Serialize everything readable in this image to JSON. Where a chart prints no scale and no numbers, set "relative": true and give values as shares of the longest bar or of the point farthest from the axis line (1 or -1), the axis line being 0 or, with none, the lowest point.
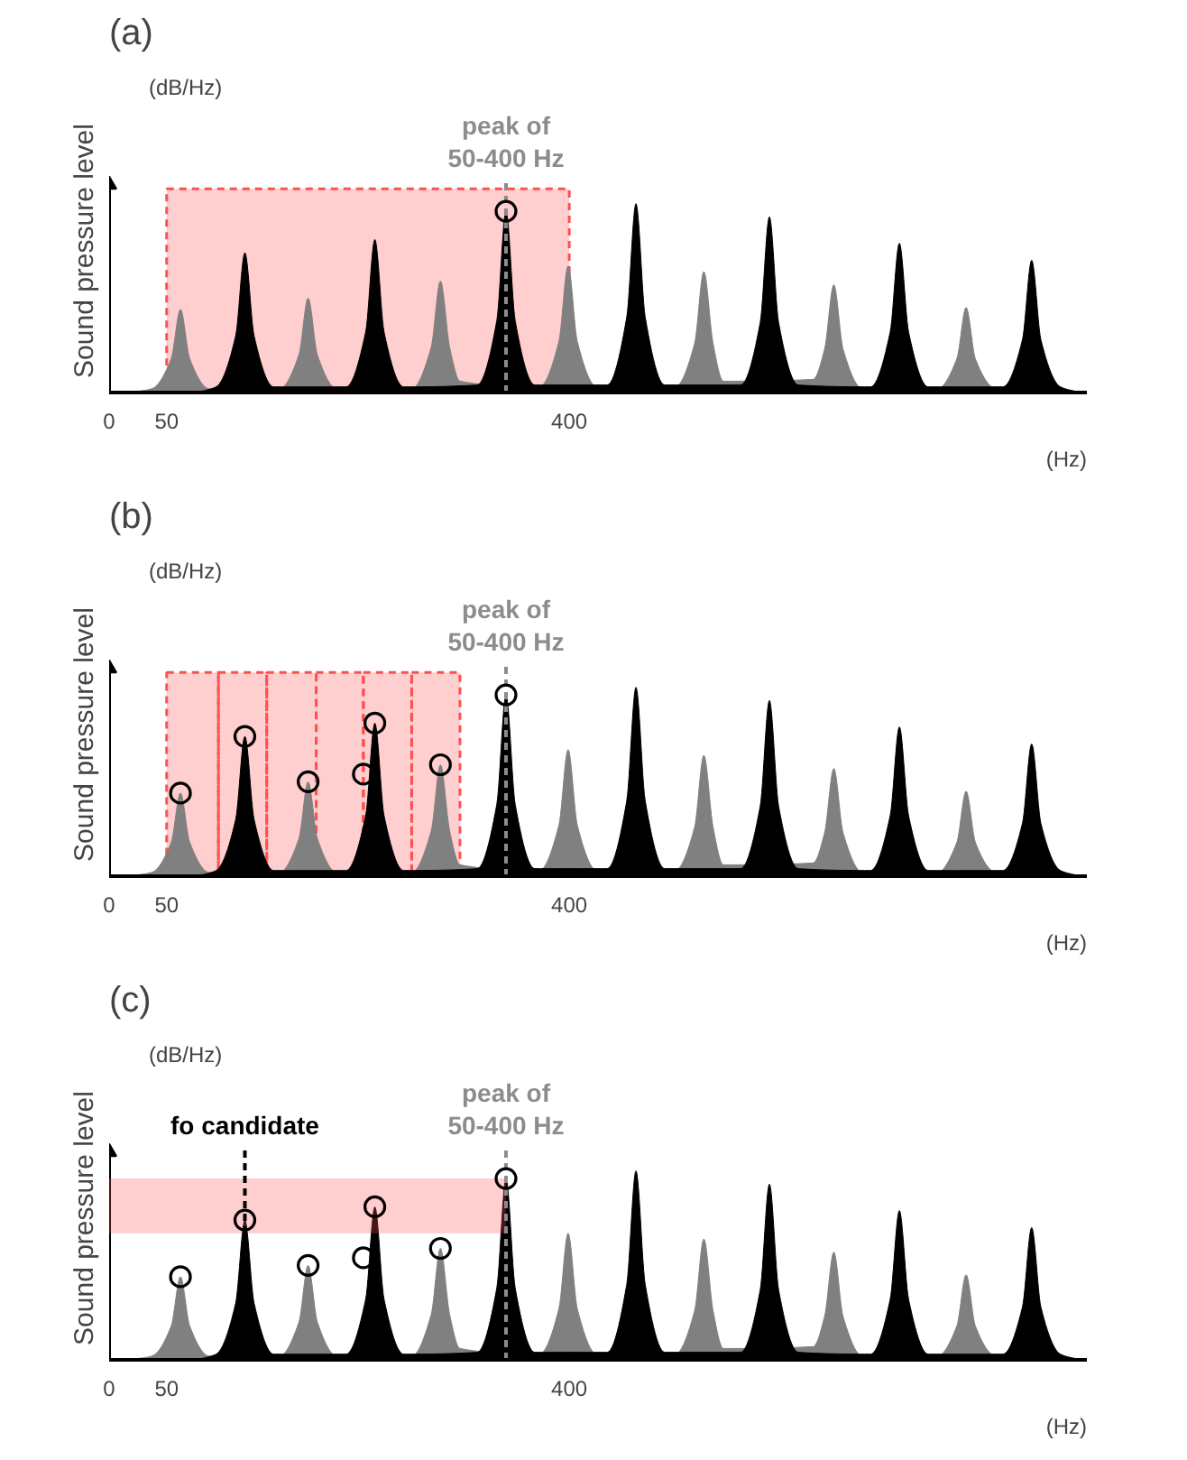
{
  "chart_data": [
    {
      "type": "area",
      "title": "(a)",
      "xlabel": "(Hz)",
      "ylabel": "Sound pressure level",
      "annotations": [
        "(dB/Hz)"
      ],
      "relative": true,
      "xlim": [
        0,
        850
      ],
      "xticks": [
        0,
        50,
        400
      ],
      "grid": false,
      "series": [
        {
          "color": "#808080",
          "x": [
            15,
            37,
            54,
            62,
            70,
            87,
            148,
            165,
            173,
            181,
            198,
            263,
            280,
            288,
            296,
            305,
            374,
            391,
            399,
            407,
            424,
            492,
            509,
            517,
            525,
            534,
            612,
            622,
            630,
            638,
            655,
            720,
            737,
            745,
            753,
            770,
            790
          ],
          "values": [
            0,
            0.02,
            0.18,
            0.44,
            0.18,
            0.02,
            0.02,
            0.2,
            0.5,
            0.2,
            0.02,
            0.02,
            0.24,
            0.59,
            0.24,
            0.06,
            0.03,
            0.27,
            0.67,
            0.27,
            0.03,
            0.03,
            0.26,
            0.64,
            0.26,
            0.06,
            0.07,
            0.23,
            0.57,
            0.23,
            0.02,
            0.02,
            0.18,
            0.45,
            0.18,
            0.02,
            0
          ]
        },
        {
          "color": "#000000",
          "x": [
            75,
            93,
            110,
            118,
            126,
            143,
            206,
            223,
            231,
            239,
            256,
            320,
            337,
            345,
            353,
            370,
            433,
            450,
            458,
            466,
            483,
            549,
            566,
            574,
            582,
            599,
            662,
            679,
            687,
            695,
            712,
            777,
            794,
            802,
            810,
            827,
            845
          ],
          "values": [
            0,
            0.03,
            0.3,
            0.74,
            0.3,
            0.03,
            0.03,
            0.32,
            0.81,
            0.32,
            0.03,
            0.04,
            0.38,
            0.96,
            0.38,
            0.04,
            0.04,
            0.4,
            1,
            0.4,
            0.04,
            0.04,
            0.37,
            0.93,
            0.37,
            0.04,
            0.03,
            0.32,
            0.79,
            0.32,
            0.03,
            0.03,
            0.28,
            0.7,
            0.28,
            0.03,
            0
          ]
        },
        {
          "type": "scatter",
          "marker": "circle",
          "color": "#000000",
          "x": [
            345
          ],
          "values": [
            0.96
          ]
        }
      ],
      "bands": [
        {
          "axis": "x",
          "from": 50,
          "to": 400,
          "color": "#ff5050"
        }
      ],
      "ref_lines": [
        {
          "axis": "x",
          "value": 345,
          "label": "peak of 50-400 Hz",
          "color": "#8c8c8c",
          "line_style": "dashed"
        }
      ]
    },
    {
      "type": "area",
      "title": "(b)",
      "xlabel": "(Hz)",
      "ylabel": "Sound pressure level",
      "annotations": [
        "(dB/Hz)"
      ],
      "relative": true,
      "xlim": [
        0,
        850
      ],
      "xticks": [
        0,
        50,
        400
      ],
      "grid": false,
      "series": [
        {
          "color": "#808080",
          "x": [
            15,
            37,
            54,
            62,
            70,
            87,
            148,
            165,
            173,
            181,
            198,
            263,
            280,
            288,
            296,
            305,
            374,
            391,
            399,
            407,
            424,
            492,
            509,
            517,
            525,
            534,
            612,
            622,
            630,
            638,
            655,
            720,
            737,
            745,
            753,
            770,
            790
          ],
          "values": [
            0,
            0.02,
            0.18,
            0.44,
            0.18,
            0.02,
            0.02,
            0.2,
            0.5,
            0.2,
            0.02,
            0.02,
            0.24,
            0.59,
            0.24,
            0.06,
            0.03,
            0.27,
            0.67,
            0.27,
            0.03,
            0.03,
            0.26,
            0.64,
            0.26,
            0.06,
            0.07,
            0.23,
            0.57,
            0.23,
            0.02,
            0.02,
            0.18,
            0.45,
            0.18,
            0.02,
            0
          ]
        },
        {
          "color": "#000000",
          "x": [
            75,
            93,
            110,
            118,
            126,
            143,
            206,
            223,
            231,
            239,
            256,
            320,
            337,
            345,
            353,
            370,
            433,
            450,
            458,
            466,
            483,
            549,
            566,
            574,
            582,
            599,
            662,
            679,
            687,
            695,
            712,
            777,
            794,
            802,
            810,
            827,
            845
          ],
          "values": [
            0,
            0.03,
            0.3,
            0.74,
            0.3,
            0.03,
            0.03,
            0.32,
            0.81,
            0.32,
            0.03,
            0.04,
            0.38,
            0.96,
            0.38,
            0.04,
            0.04,
            0.4,
            1,
            0.4,
            0.04,
            0.04,
            0.37,
            0.93,
            0.37,
            0.04,
            0.03,
            0.32,
            0.79,
            0.32,
            0.03,
            0.03,
            0.28,
            0.7,
            0.28,
            0.03,
            0
          ]
        },
        {
          "type": "scatter",
          "marker": "circle",
          "color": "#000000",
          "x": [
            62,
            118,
            173,
            221,
            231,
            288,
            345
          ],
          "values": [
            0.44,
            0.74,
            0.5,
            0.54,
            0.81,
            0.59,
            0.96
          ]
        }
      ],
      "bands": [
        {
          "axis": "x",
          "from": 50,
          "to": 95,
          "color": "#ff5050"
        },
        {
          "axis": "x",
          "from": 95,
          "to": 137,
          "color": "#ff5050"
        },
        {
          "axis": "x",
          "from": 137,
          "to": 180,
          "color": "#ff5050"
        },
        {
          "axis": "x",
          "from": 180,
          "to": 221,
          "color": "#ff5050"
        },
        {
          "axis": "x",
          "from": 221,
          "to": 263,
          "color": "#ff5050"
        },
        {
          "axis": "x",
          "from": 263,
          "to": 305,
          "color": "#ff5050"
        }
      ],
      "ref_lines": [
        {
          "axis": "x",
          "value": 345,
          "label": "peak of 50-400 Hz",
          "color": "#8c8c8c",
          "line_style": "dashed"
        }
      ]
    },
    {
      "type": "area",
      "title": "(c)",
      "xlabel": "(Hz)",
      "ylabel": "Sound pressure level",
      "annotations": [
        "(dB/Hz)"
      ],
      "relative": true,
      "xlim": [
        0,
        850
      ],
      "xticks": [
        0,
        50,
        400
      ],
      "grid": false,
      "series": [
        {
          "color": "#808080",
          "x": [
            15,
            37,
            54,
            62,
            70,
            87,
            148,
            165,
            173,
            181,
            198,
            263,
            280,
            288,
            296,
            305,
            374,
            391,
            399,
            407,
            424,
            492,
            509,
            517,
            525,
            534,
            612,
            622,
            630,
            638,
            655,
            720,
            737,
            745,
            753,
            770,
            790
          ],
          "values": [
            0,
            0.02,
            0.18,
            0.44,
            0.18,
            0.02,
            0.02,
            0.2,
            0.5,
            0.2,
            0.02,
            0.02,
            0.24,
            0.59,
            0.24,
            0.06,
            0.03,
            0.27,
            0.67,
            0.27,
            0.03,
            0.03,
            0.26,
            0.64,
            0.26,
            0.06,
            0.07,
            0.23,
            0.57,
            0.23,
            0.02,
            0.02,
            0.18,
            0.45,
            0.18,
            0.02,
            0
          ]
        },
        {
          "color": "#000000",
          "x": [
            75,
            93,
            110,
            118,
            126,
            143,
            206,
            223,
            231,
            239,
            256,
            320,
            337,
            345,
            353,
            370,
            433,
            450,
            458,
            466,
            483,
            549,
            566,
            574,
            582,
            599,
            662,
            679,
            687,
            695,
            712,
            777,
            794,
            802,
            810,
            827,
            845
          ],
          "values": [
            0,
            0.03,
            0.3,
            0.74,
            0.3,
            0.03,
            0.03,
            0.32,
            0.81,
            0.32,
            0.03,
            0.04,
            0.38,
            0.96,
            0.38,
            0.04,
            0.04,
            0.4,
            1,
            0.4,
            0.04,
            0.04,
            0.37,
            0.93,
            0.37,
            0.04,
            0.03,
            0.32,
            0.79,
            0.32,
            0.03,
            0.03,
            0.28,
            0.7,
            0.28,
            0.03,
            0
          ]
        },
        {
          "type": "scatter",
          "marker": "circle",
          "color": "#000000",
          "x": [
            62,
            118,
            173,
            221,
            231,
            288,
            345
          ],
          "values": [
            0.44,
            0.74,
            0.5,
            0.54,
            0.81,
            0.59,
            0.96
          ]
        }
      ],
      "bands": [
        {
          "axis": "y",
          "from": 0.67,
          "to": 0.96,
          "color": "#ff5050"
        }
      ],
      "ref_lines": [
        {
          "axis": "x",
          "value": 118,
          "label": "fo candidate",
          "color": "#000000",
          "line_style": "dashed"
        },
        {
          "axis": "x",
          "value": 345,
          "label": "peak of 50-400 Hz",
          "color": "#8c8c8c",
          "line_style": "dashed"
        }
      ]
    }
  ]
}
